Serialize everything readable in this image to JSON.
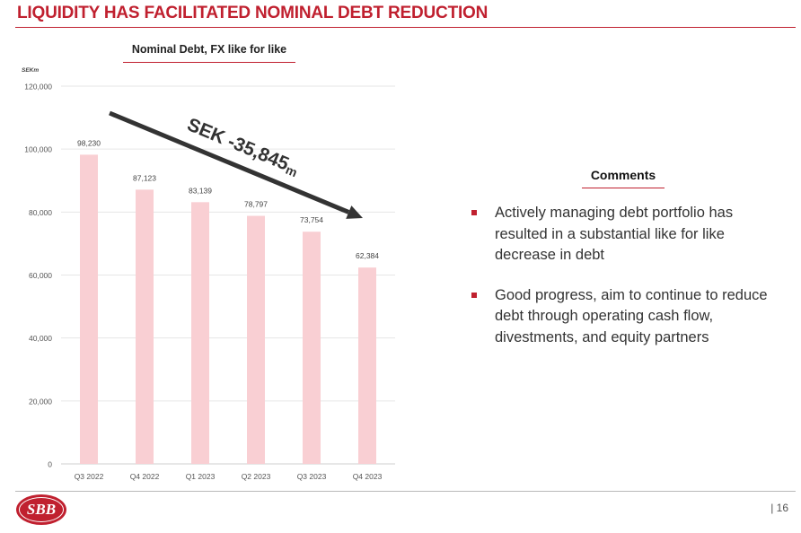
{
  "slide": {
    "title": "LIQUIDITY HAS FACILITATED NOMINAL DEBT REDUCTION",
    "page_number": "| 16",
    "logo_text": "SBB"
  },
  "comments": {
    "heading": "Comments",
    "bullets": [
      "Actively managing debt portfolio has resulted in a substantial like for like decrease in debt",
      "Good progress, aim to continue to reduce debt through  operating cash flow, divestments, and equity partners"
    ]
  },
  "colors": {
    "accent": "#c0202f",
    "bar": "#f9cfd3",
    "arrow": "#333333"
  },
  "chart_data": {
    "type": "bar",
    "title": "Nominal Debt, FX like for like",
    "unit_label": "SEKm",
    "categories": [
      "Q3 2022",
      "Q4 2022",
      "Q1 2023",
      "Q2 2023",
      "Q3 2023",
      "Q4 2023"
    ],
    "values": [
      98230,
      87123,
      83139,
      78797,
      73754,
      62384
    ],
    "data_labels": [
      "98,230",
      "87,123",
      "83,139",
      "78,797",
      "73,754",
      "62,384"
    ],
    "ylim": [
      0,
      120000
    ],
    "yticks": [
      0,
      20000,
      40000,
      60000,
      80000,
      100000,
      120000
    ],
    "ytick_labels": [
      "0",
      "20,000",
      "40,000",
      "60,000",
      "80,000",
      "100,000",
      "120,000"
    ],
    "grid": true,
    "annotation": {
      "text": "SEK -35,845",
      "unit": "m"
    }
  }
}
